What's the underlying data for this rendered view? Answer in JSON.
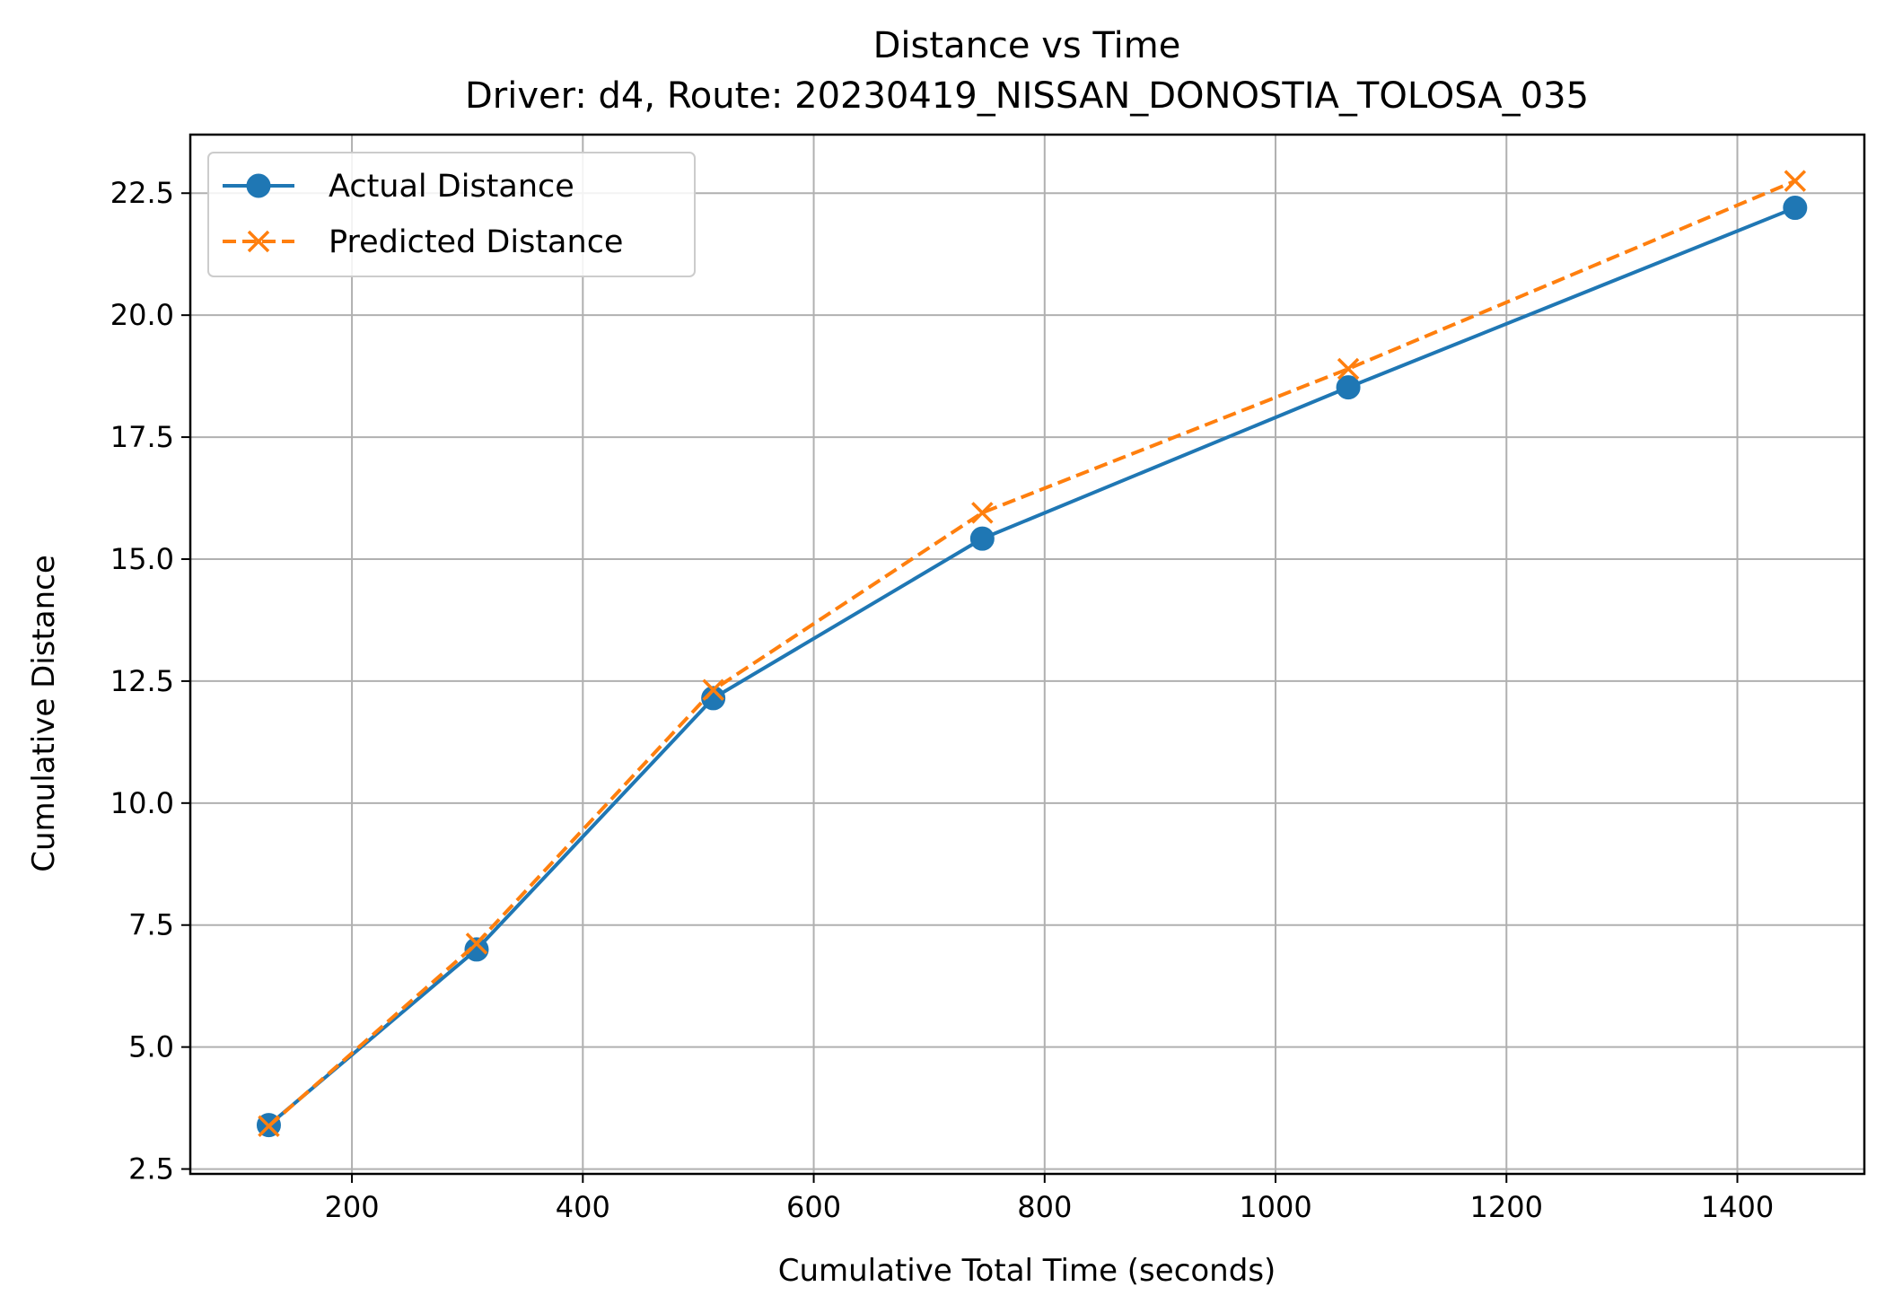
{
  "chart_data": {
    "type": "line",
    "title": "Distance vs Time",
    "subtitle": "Driver: d4, Route: 20230419_NISSAN_DONOSTIA_TOLOSA_035",
    "xlabel": "Cumulative Total Time (seconds)",
    "ylabel": "Cumulative Distance",
    "xlim": [
      60,
      1510
    ],
    "ylim": [
      2.4,
      23.7
    ],
    "xticks": [
      200,
      400,
      600,
      800,
      1000,
      1200,
      1400
    ],
    "xtick_labels": [
      "200",
      "400",
      "600",
      "800",
      "1000",
      "1200",
      "1400"
    ],
    "yticks": [
      2.5,
      5.0,
      7.5,
      10.0,
      12.5,
      15.0,
      17.5,
      20.0,
      22.5
    ],
    "ytick_labels": [
      "2.5",
      "5.0",
      "7.5",
      "10.0",
      "12.5",
      "15.0",
      "17.5",
      "20.0",
      "22.5"
    ],
    "grid": true,
    "legend_position": "top-left",
    "x": [
      128,
      308,
      513,
      746,
      1063,
      1450
    ],
    "series": [
      {
        "name": "Actual Distance",
        "values": [
          3.4,
          7.0,
          12.15,
          15.42,
          18.52,
          22.2
        ],
        "color": "#1f77b4",
        "line_style": "solid",
        "marker": "circle"
      },
      {
        "name": "Predicted Distance",
        "values": [
          3.38,
          7.12,
          12.32,
          15.95,
          18.9,
          22.75
        ],
        "color": "#ff7f0e",
        "line_style": "dashed",
        "marker": "x"
      }
    ]
  }
}
